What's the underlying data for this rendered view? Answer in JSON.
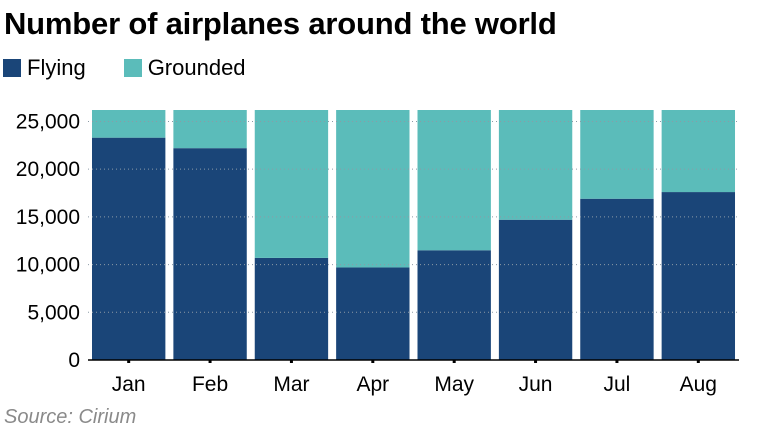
{
  "chart_data": {
    "type": "bar",
    "stacked": true,
    "title": "Number of airplanes around the world",
    "source": "Source: Cirium",
    "categories": [
      "Jan",
      "Feb",
      "Mar",
      "Apr",
      "May",
      "Jun",
      "Jul",
      "Aug"
    ],
    "series": [
      {
        "name": "Flying",
        "color": "#1a4578",
        "values": [
          23300,
          22200,
          10700,
          9700,
          11500,
          14700,
          16900,
          17600
        ]
      },
      {
        "name": "Grounded",
        "color": "#5bbcba",
        "values": [
          2900,
          4000,
          15500,
          16500,
          14700,
          11500,
          9300,
          8600
        ]
      }
    ],
    "yticks": [
      "0",
      "5,000",
      "10,000",
      "15,000",
      "20,000",
      "25,000"
    ],
    "ylim": [
      0,
      26200
    ],
    "grid": true,
    "legend_position": "top-left"
  }
}
